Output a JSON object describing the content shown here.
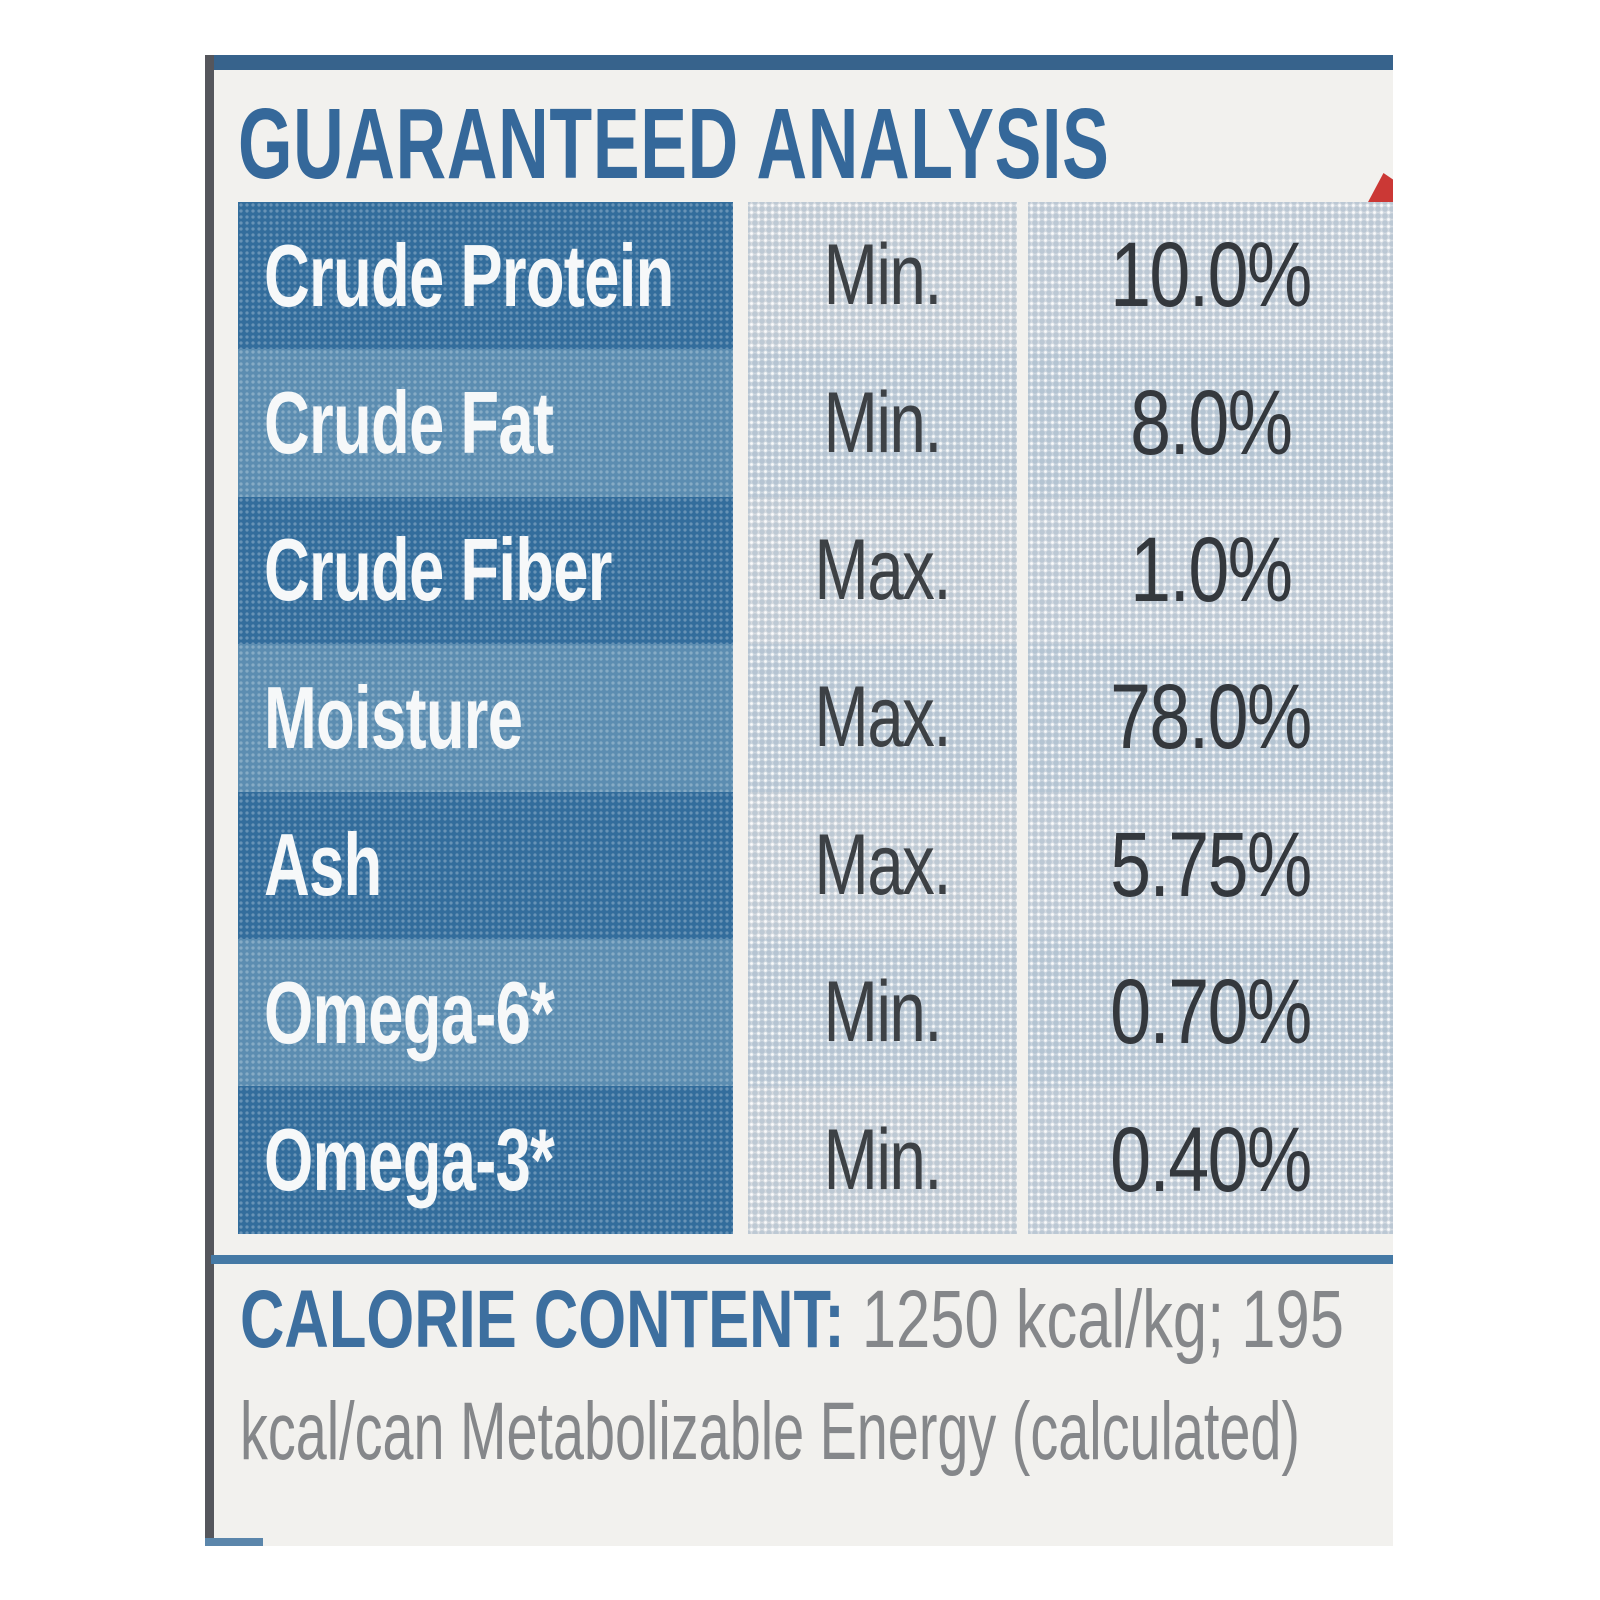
{
  "header": {
    "title": "GUARANTEED ANALYSIS"
  },
  "table": {
    "rows": [
      {
        "nutrient": "Crude Protein",
        "basis": "Min.",
        "value": "10.0%"
      },
      {
        "nutrient": "Crude Fat",
        "basis": "Min.",
        "value": "8.0%"
      },
      {
        "nutrient": "Crude Fiber",
        "basis": "Max.",
        "value": "1.0%"
      },
      {
        "nutrient": "Moisture",
        "basis": "Max.",
        "value": "78.0%"
      },
      {
        "nutrient": "Ash",
        "basis": "Max.",
        "value": "5.75%"
      },
      {
        "nutrient": "Omega-6*",
        "basis": "Min.",
        "value": "0.70%"
      },
      {
        "nutrient": "Omega-3*",
        "basis": "Min.",
        "value": "0.40%"
      }
    ]
  },
  "calorie": {
    "heading": "CALORIE CONTENT:",
    "value": "1250 kcal/kg; 195",
    "continuation": "kcal/can Metabolizable Energy (calculated)"
  },
  "colors": {
    "accent_blue": "#35689a",
    "row_dark_blue": "#336d9c",
    "row_light_blue": "#5c8db1",
    "strip_bg": "#d2dae1",
    "value_text": "#34383d",
    "gray_text": "#85878a",
    "divider_blue": "#4579a5",
    "red_accent": "#cb3835",
    "label_bg": "#f2f1ee"
  }
}
